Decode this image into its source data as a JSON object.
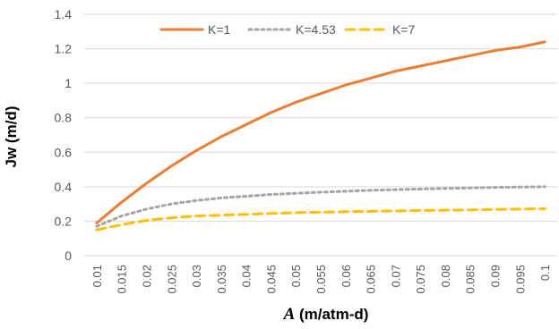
{
  "chart_data": {
    "type": "line",
    "xlabel_var": "A",
    "xlabel_rest": " (m/atm-d)",
    "ylabel": "Jw (m/d)",
    "x": [
      0.01,
      0.015,
      0.02,
      0.025,
      0.03,
      0.035,
      0.04,
      0.045,
      0.05,
      0.055,
      0.06,
      0.065,
      0.07,
      0.075,
      0.08,
      0.085,
      0.09,
      0.095,
      0.1
    ],
    "x_tick_labels": [
      "0.01",
      "0.015",
      "0.02",
      "0.025",
      "0.03",
      "0.035",
      "0.04",
      "0.045",
      "0.05",
      "0.055",
      "0.06",
      "0.065",
      "0.07",
      "0.075",
      "0.08",
      "0.085",
      "0.09",
      "0.095",
      "0.1"
    ],
    "ylim": [
      0,
      1.4
    ],
    "y_ticks": [
      0,
      0.2,
      0.4,
      0.6,
      0.8,
      1,
      1.2,
      1.4
    ],
    "y_tick_labels": [
      "0",
      "0.2",
      "0.4",
      "0.6",
      "0.8",
      "1",
      "1.2",
      "1.4"
    ],
    "grid": true,
    "legend_position": "top-center",
    "series": [
      {
        "name": "K=1",
        "color": "#ed7d31",
        "dash": "solid",
        "values": [
          0.19,
          0.31,
          0.42,
          0.52,
          0.61,
          0.69,
          0.76,
          0.83,
          0.89,
          0.94,
          0.99,
          1.03,
          1.07,
          1.1,
          1.13,
          1.16,
          1.19,
          1.21,
          1.24
        ]
      },
      {
        "name": "K=4.53",
        "color": "#a5a5a5",
        "dash": "dot",
        "values": [
          0.17,
          0.23,
          0.27,
          0.3,
          0.32,
          0.335,
          0.345,
          0.355,
          0.362,
          0.368,
          0.374,
          0.379,
          0.383,
          0.387,
          0.39,
          0.393,
          0.396,
          0.398,
          0.4
        ]
      },
      {
        "name": "K=7",
        "color": "#ffc000",
        "dash": "dash",
        "values": [
          0.15,
          0.18,
          0.205,
          0.22,
          0.23,
          0.235,
          0.24,
          0.245,
          0.25,
          0.252,
          0.255,
          0.257,
          0.26,
          0.262,
          0.264,
          0.266,
          0.268,
          0.27,
          0.272
        ]
      }
    ]
  }
}
